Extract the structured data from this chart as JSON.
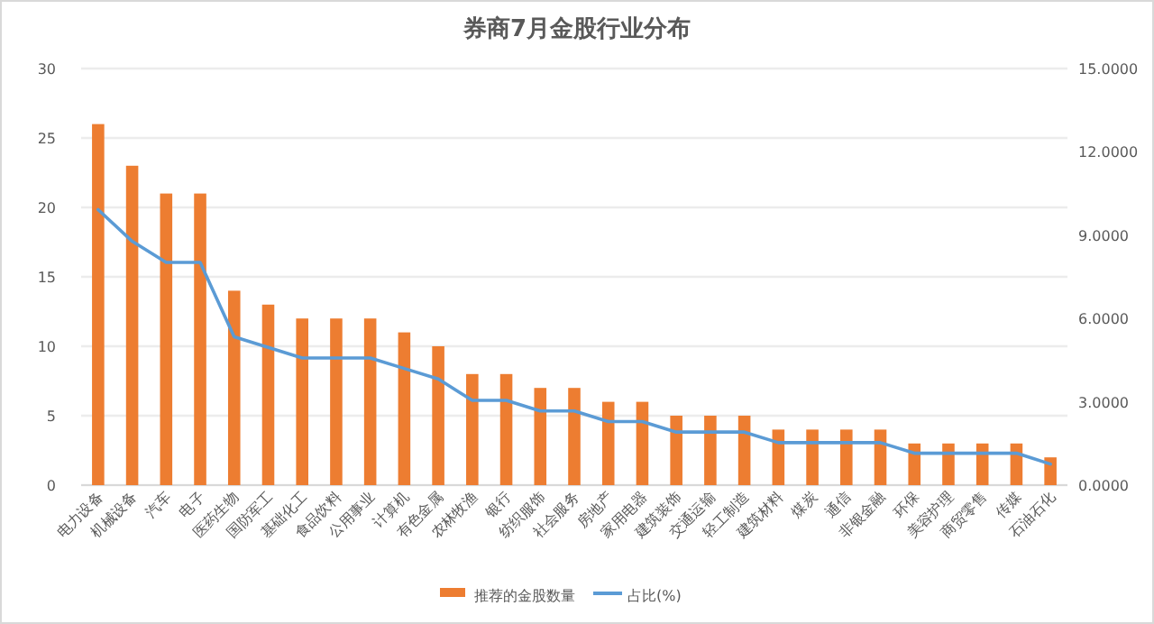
{
  "chart_data": {
    "type": "bar",
    "title": "券商7月金股行业分布",
    "categories": [
      "电力设备",
      "机械设备",
      "汽车",
      "电子",
      "医药生物",
      "国防军工",
      "基础化工",
      "食品饮料",
      "公用事业",
      "计算机",
      "有色金属",
      "农林牧渔",
      "银行",
      "纺织服饰",
      "社会服务",
      "房地产",
      "家用电器",
      "建筑装饰",
      "交通运输",
      "轻工制造",
      "建筑材料",
      "煤炭",
      "通信",
      "非银金融",
      "环保",
      "美容护理",
      "商贸零售",
      "传媒",
      "石油石化"
    ],
    "series": [
      {
        "name": "推荐的金股数量",
        "color": "#ed7d31",
        "values": [
          26,
          23,
          21,
          21,
          14,
          13,
          12,
          12,
          12,
          11,
          10,
          8,
          8,
          7,
          7,
          6,
          6,
          5,
          5,
          5,
          4,
          4,
          4,
          4,
          3,
          3,
          3,
          3,
          2
        ]
      },
      {
        "name": "占比(%)",
        "type": "line",
        "axis": "y2",
        "color": "#5b9bd5",
        "values": [
          9.92,
          8.78,
          8.02,
          8.02,
          5.34,
          4.96,
          4.58,
          4.58,
          4.58,
          4.2,
          3.82,
          3.05,
          3.05,
          2.67,
          2.67,
          2.29,
          2.29,
          1.91,
          1.91,
          1.91,
          1.53,
          1.53,
          1.53,
          1.53,
          1.15,
          1.15,
          1.15,
          1.15,
          0.76
        ]
      }
    ],
    "ylim": [
      0,
      30
    ],
    "yticks": [
      0,
      5,
      10,
      15,
      20,
      25,
      30
    ],
    "y2lim": [
      0,
      15
    ],
    "y2ticks": [
      {
        "value": 0,
        "label": "0.0000"
      },
      {
        "value": 3,
        "label": "3.0000"
      },
      {
        "value": 6,
        "label": "6.0000"
      },
      {
        "value": 9,
        "label": "9.0000"
      },
      {
        "value": 12,
        "label": "12.0000"
      },
      {
        "value": 15,
        "label": "15.0000"
      }
    ],
    "grid": "y",
    "legend": "bottom",
    "marker": "none",
    "line_style": "solid"
  }
}
